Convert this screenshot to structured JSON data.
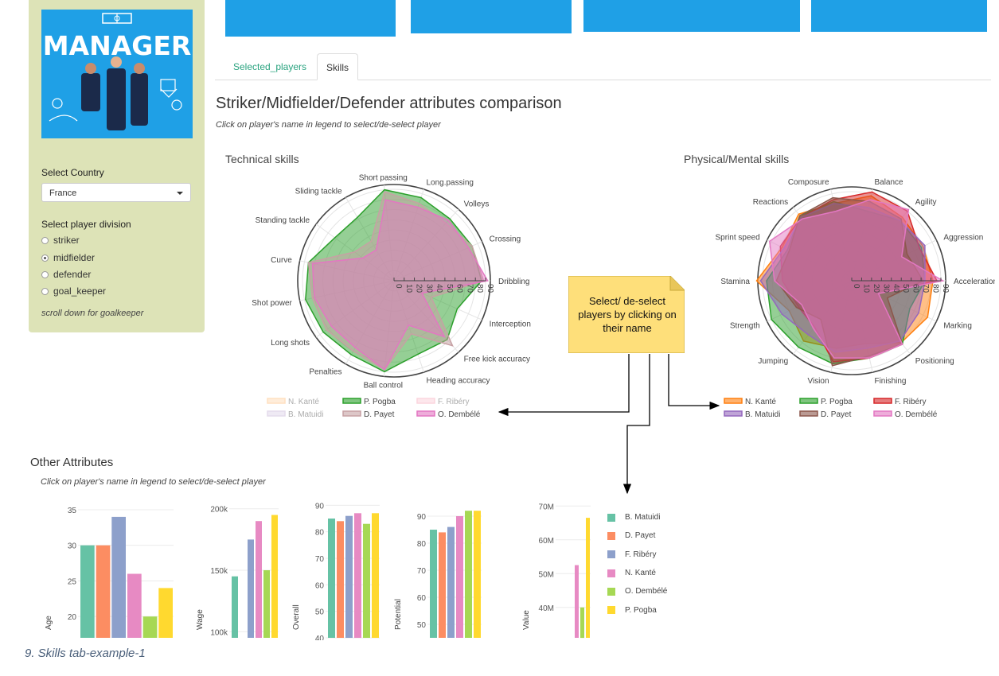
{
  "sidebar": {
    "logo_text": "MANAGER",
    "country_label": "Select Country",
    "country_value": "France",
    "division_label": "Select player division",
    "divisions": [
      "striker",
      "midfielder",
      "defender",
      "goal_keeper"
    ],
    "selected_division": "midfielder",
    "hint": "scroll down for goalkeeper"
  },
  "tabs": [
    "Selected_players",
    "Skills"
  ],
  "main": {
    "title": "Striker/Midfielder/Defender attributes comparison",
    "subtitle": "Click on player's name in legend to select/de-select player"
  },
  "technical": {
    "title": "Technical skills",
    "axes": [
      "Dribbling",
      "Crossing",
      "Volleys",
      "Long.passing",
      "Short passing",
      "Sliding tackle",
      "Standing tackle",
      "Curve",
      "Shot power",
      "Long shots",
      "Penalties",
      "Ball control",
      "Heading accuracy",
      "Free kick accuracy",
      "Interception"
    ],
    "ticks": [
      "0",
      "10",
      "20",
      "30",
      "40",
      "50",
      "60",
      "70",
      "80",
      "90"
    ],
    "series": [
      {
        "name": "P. Pogba",
        "color": "#2ca02c",
        "values": [
          86,
          84,
          82,
          86,
          90,
          72,
          72,
          86,
          89,
          86,
          84,
          90,
          76,
          78,
          68
        ]
      },
      {
        "name": "D. Payet",
        "color": "#c7a1a4",
        "values": [
          88,
          84,
          76,
          80,
          88,
          45,
          48,
          86,
          82,
          82,
          80,
          88,
          55,
          86,
          40
        ]
      },
      {
        "name": "O. Dembélé",
        "color": "#e377c2",
        "values": [
          92,
          80,
          80,
          76,
          80,
          35,
          38,
          82,
          80,
          76,
          76,
          88,
          46,
          74,
          30
        ]
      }
    ],
    "legend": [
      {
        "name": "N. Kanté",
        "color": "#ffbb78",
        "active": false
      },
      {
        "name": "P. Pogba",
        "color": "#2ca02c",
        "active": true
      },
      {
        "name": "F. Ribéry",
        "color": "#f7a6b8",
        "active": false
      },
      {
        "name": "B. Matuidi",
        "color": "#c5b0d5",
        "active": false
      },
      {
        "name": "D. Payet",
        "color": "#c7a1a4",
        "active": true
      },
      {
        "name": "O. Dembélé",
        "color": "#e377c2",
        "active": true
      }
    ]
  },
  "physical": {
    "title": "Physical/Mental skills",
    "axes": [
      "Acceleration",
      "Aggression",
      "Agility",
      "Balance",
      "Composure",
      "Reactions",
      "Sprint speed",
      "Stamina",
      "Strength",
      "Jumping",
      "Vision",
      "Finishing",
      "Positioning",
      "Marking"
    ],
    "ticks": [
      "0",
      "10",
      "20",
      "30",
      "40",
      "50",
      "60",
      "70",
      "80",
      "90"
    ],
    "series": [
      {
        "name": "N. Kanté",
        "color": "#ff7f0e",
        "values": [
          82,
          80,
          82,
          88,
          80,
          86,
          78,
          96,
          70,
          78,
          70,
          65,
          80,
          85
        ]
      },
      {
        "name": "P. Pogba",
        "color": "#2ca02c",
        "values": [
          74,
          78,
          78,
          72,
          82,
          84,
          72,
          86,
          90,
          86,
          86,
          80,
          82,
          65
        ]
      },
      {
        "name": "F. Ribéry",
        "color": "#d62728",
        "values": [
          86,
          76,
          90,
          92,
          84,
          82,
          80,
          70,
          60,
          60,
          84,
          80,
          82,
          30
        ]
      },
      {
        "name": "B. Matuidi",
        "color": "#9467bd",
        "values": [
          74,
          82,
          78,
          76,
          80,
          82,
          76,
          92,
          78,
          70,
          74,
          70,
          78,
          75
        ]
      },
      {
        "name": "D. Payet",
        "color": "#8c564b",
        "values": [
          72,
          62,
          80,
          82,
          86,
          84,
          70,
          76,
          62,
          50,
          88,
          78,
          82,
          40
        ]
      },
      {
        "name": "O. Dembélé",
        "color": "#e377c2",
        "values": [
          92,
          56,
          92,
          84,
          72,
          80,
          92,
          78,
          56,
          62,
          80,
          80,
          82,
          30
        ]
      }
    ],
    "legend": [
      {
        "name": "N. Kanté",
        "color": "#ff7f0e",
        "active": true
      },
      {
        "name": "P. Pogba",
        "color": "#2ca02c",
        "active": true
      },
      {
        "name": "F. Ribéry",
        "color": "#d62728",
        "active": true
      },
      {
        "name": "B. Matuidi",
        "color": "#9467bd",
        "active": true
      },
      {
        "name": "D. Payet",
        "color": "#8c564b",
        "active": true
      },
      {
        "name": "O. Dembélé",
        "color": "#e377c2",
        "active": true
      }
    ]
  },
  "note": {
    "text": "Select/ de-select players by clicking on their name"
  },
  "other": {
    "title": "Other Attributes",
    "subtitle": "Click on player's name in legend to select/de-select player",
    "legend": [
      {
        "name": "B. Matuidi",
        "color": "#66c2a5"
      },
      {
        "name": "D. Payet",
        "color": "#fc8d62"
      },
      {
        "name": "F. Ribéry",
        "color": "#8da0cb"
      },
      {
        "name": "N. Kanté",
        "color": "#e78ac3"
      },
      {
        "name": "O. Dembélé",
        "color": "#a6d854"
      },
      {
        "name": "P. Pogba",
        "color": "#ffd92f"
      }
    ]
  },
  "caption": "9. Skills tab-example-1",
  "chart_data": [
    {
      "type": "bar",
      "ylabel": "Age",
      "ylim": [
        17,
        36
      ],
      "ticks": [
        "20",
        "25",
        "30",
        "35"
      ],
      "tickvals": [
        20,
        25,
        30,
        35
      ],
      "categories": [
        "B. Matuidi",
        "D. Payet",
        "F. Ribéry",
        "N. Kanté",
        "O. Dembélé",
        "P. Pogba"
      ],
      "values": [
        30,
        30,
        34,
        26,
        20,
        24
      ]
    },
    {
      "type": "bar",
      "ylabel": "Wage",
      "ylim": [
        95000,
        205000
      ],
      "ticks": [
        "100k",
        "150k",
        "200k"
      ],
      "tickvals": [
        100000,
        150000,
        200000
      ],
      "categories": [
        "B. Matuidi",
        "D. Payet",
        "F. Ribéry",
        "N. Kanté",
        "O. Dembélé",
        "P. Pogba"
      ],
      "values": [
        145000,
        null,
        175000,
        190000,
        150000,
        195000
      ]
    },
    {
      "type": "bar",
      "ylabel": "Overall",
      "ylim": [
        40,
        91
      ],
      "ticks": [
        "40",
        "50",
        "60",
        "70",
        "80",
        "90"
      ],
      "tickvals": [
        40,
        50,
        60,
        70,
        80,
        90
      ],
      "categories": [
        "B. Matuidi",
        "D. Payet",
        "F. Ribéry",
        "N. Kanté",
        "O. Dembélé",
        "P. Pogba"
      ],
      "values": [
        85,
        84,
        86,
        87,
        83,
        87
      ]
    },
    {
      "type": "bar",
      "ylabel": "Potential",
      "ylim": [
        45,
        95
      ],
      "ticks": [
        "50",
        "60",
        "70",
        "80",
        "90"
      ],
      "tickvals": [
        50,
        60,
        70,
        80,
        90
      ],
      "categories": [
        "B. Matuidi",
        "D. Payet",
        "F. Ribéry",
        "N. Kanté",
        "O. Dembélé",
        "P. Pogba"
      ],
      "values": [
        85,
        84,
        86,
        90,
        92,
        92
      ]
    },
    {
      "type": "bar",
      "ylabel": "Value",
      "ylim": [
        31000000,
        71000000
      ],
      "ticks": [
        "40M",
        "50M",
        "60M",
        "70M"
      ],
      "tickvals": [
        40000000,
        50000000,
        60000000,
        70000000
      ],
      "categories": [
        "B. Matuidi",
        "D. Payet",
        "F. Ribéry",
        "N. Kanté",
        "O. Dembélé",
        "P. Pogba"
      ],
      "values": [
        null,
        null,
        null,
        52500000,
        40000000,
        66500000
      ]
    }
  ]
}
